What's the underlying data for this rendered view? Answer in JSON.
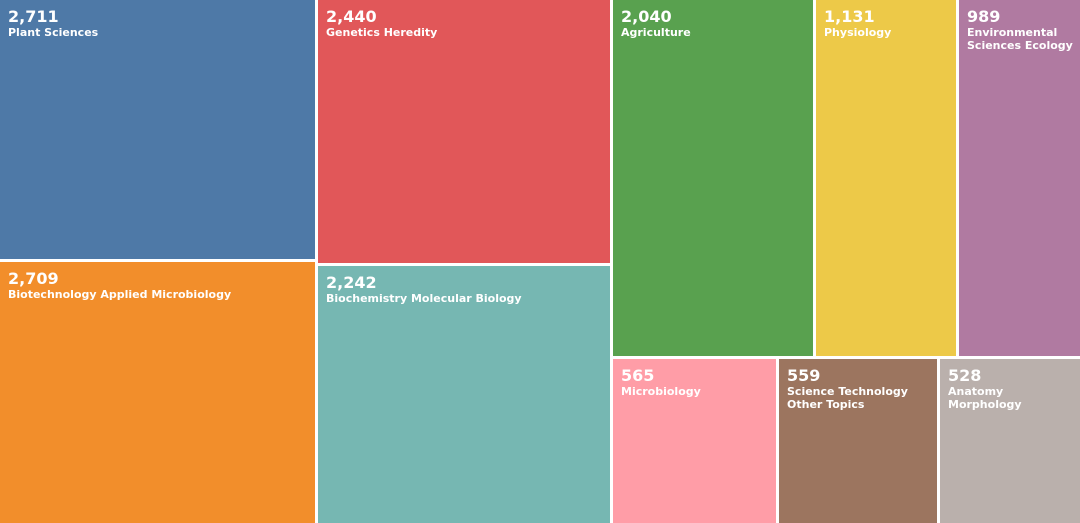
{
  "chart_data": {
    "type": "treemap",
    "items": [
      {
        "label": "Plant Sciences",
        "value": 2711,
        "display": "2,711",
        "color": "#4e79a7"
      },
      {
        "label": "Biotechnology Applied Microbiology",
        "value": 2709,
        "display": "2,709",
        "color": "#f28e2b"
      },
      {
        "label": "Genetics Heredity",
        "value": 2440,
        "display": "2,440",
        "color": "#e15759"
      },
      {
        "label": "Biochemistry Molecular Biology",
        "value": 2242,
        "display": "2,242",
        "color": "#76b7b2"
      },
      {
        "label": "Agriculture",
        "value": 2040,
        "display": "2,040",
        "color": "#59a14f"
      },
      {
        "label": "Physiology",
        "value": 1131,
        "display": "1,131",
        "color": "#edc948"
      },
      {
        "label": "Environmental Sciences Ecology",
        "value": 989,
        "display": "989",
        "color": "#b07aa1"
      },
      {
        "label": "Microbiology",
        "value": 565,
        "display": "565",
        "color": "#ff9da7"
      },
      {
        "label": "Science Technology Other Topics",
        "value": 559,
        "display": "559",
        "color": "#9c755f"
      },
      {
        "label": "Anatomy Morphology",
        "value": 528,
        "display": "528",
        "color": "#bab0ac"
      }
    ]
  }
}
